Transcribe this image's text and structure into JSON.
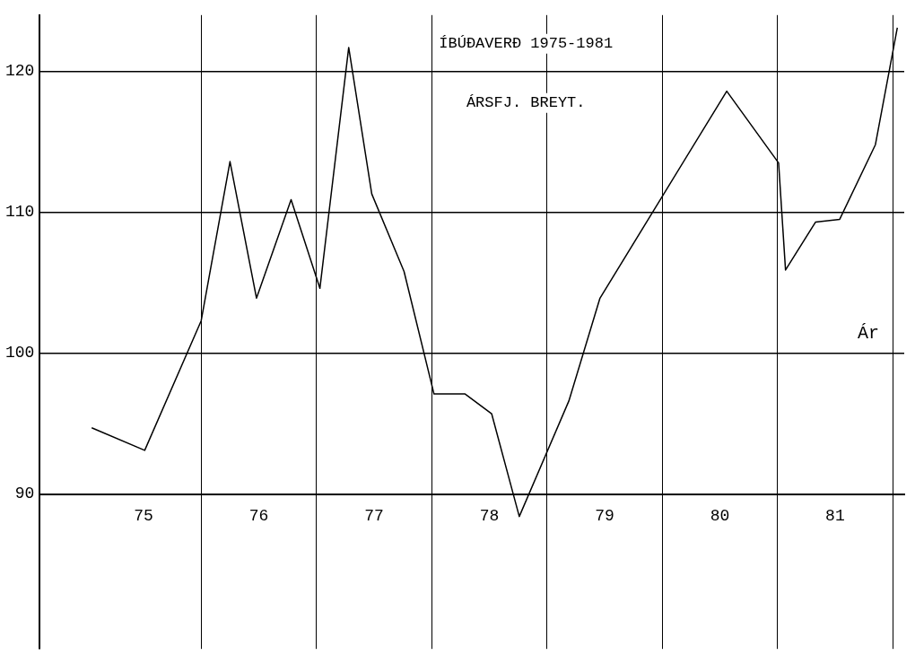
{
  "chart_data": {
    "type": "line",
    "title": "ÍBÚÐAVERÐ 1975-1981",
    "subtitle": "ÁRSFJ. BREYT.",
    "xlabel": "Ár",
    "x": [
      74.55,
      75.01,
      75.5,
      75.75,
      75.98,
      76.28,
      76.53,
      76.78,
      76.98,
      77.26,
      77.52,
      77.79,
      78.02,
      78.26,
      78.69,
      78.96,
      80.06,
      80.51,
      80.57,
      80.83,
      81.04,
      81.35,
      81.54
    ],
    "series": [
      {
        "color": "#000000",
        "values": [
          94.7,
          93.1,
          102.3,
          113.6,
          103.9,
          110.9,
          104.6,
          121.7,
          111.3,
          105.8,
          97.1,
          97.1,
          95.7,
          88.4,
          96.6,
          103.9,
          118.6,
          113.5,
          105.9,
          109.3,
          109.5,
          114.8,
          123.1
        ]
      }
    ],
    "xlim": [
      74.1,
      81.6
    ],
    "xticks": [
      75,
      {
        "value": 75.5,
        "label": null
      },
      76,
      {
        "value": 76.5,
        "label": null
      },
      77,
      {
        "value": 77.5,
        "label": null
      },
      78,
      {
        "value": 78.5,
        "label": null
      },
      79,
      {
        "value": 79.5,
        "label": null
      },
      80,
      {
        "value": 80.5,
        "label": null
      },
      81,
      {
        "value": 81.5,
        "label": null
      }
    ],
    "ylim": [
      79,
      124
    ],
    "yticks": [
      90,
      100,
      110,
      120
    ],
    "grid": true,
    "marker": "none",
    "line_style": "solid",
    "legend": false
  }
}
